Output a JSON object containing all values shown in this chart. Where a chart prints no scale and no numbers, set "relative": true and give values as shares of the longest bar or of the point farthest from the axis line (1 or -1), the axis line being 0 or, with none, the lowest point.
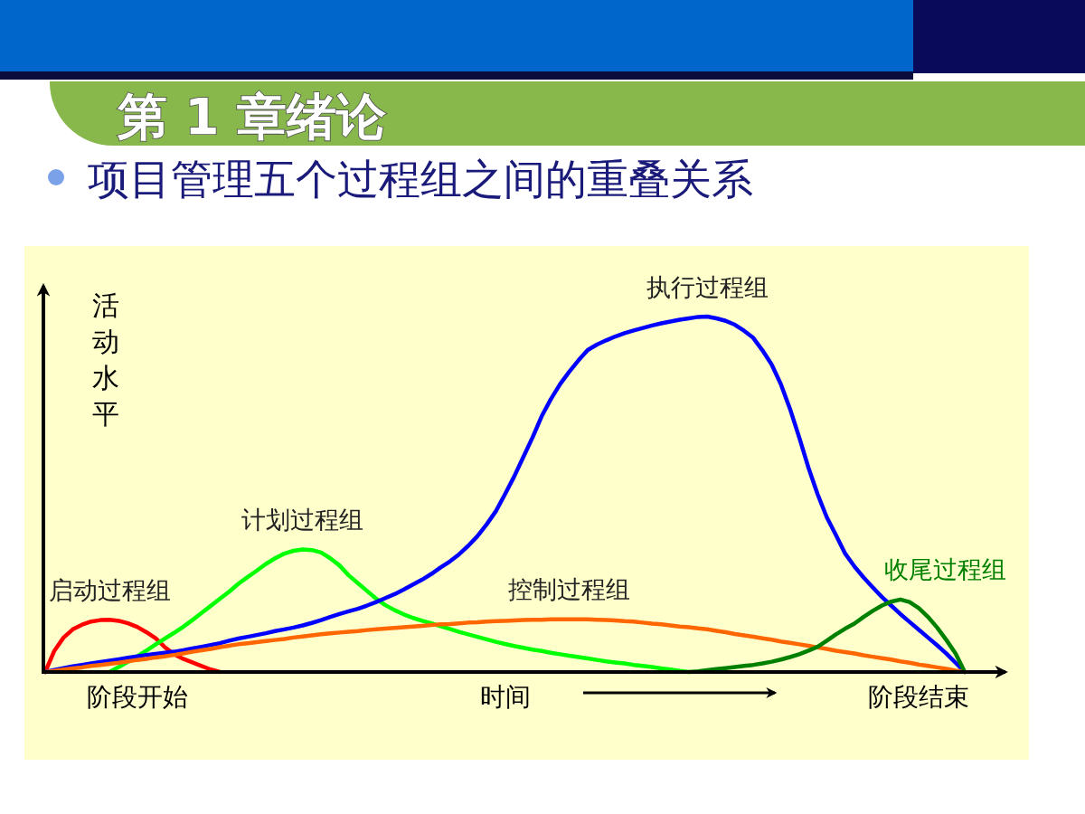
{
  "chart_data": {
    "type": "line",
    "title": "第 1 章绪论",
    "subtitle": "项目管理五个过程组之间的重叠关系",
    "xlabel": "时间",
    "ylabel": "活动水平",
    "relative": true,
    "categories": [
      null,
      null,
      null,
      null,
      null,
      null,
      null,
      null,
      null,
      null,
      "阶段开始",
      null,
      null,
      null,
      null,
      null,
      null,
      null,
      null,
      null,
      null,
      null,
      null,
      null,
      null,
      null,
      null,
      null,
      null,
      null,
      null,
      null,
      null,
      null,
      null,
      null,
      null,
      null,
      null,
      null,
      null,
      null,
      null,
      null,
      null,
      null,
      null,
      null,
      null,
      null,
      null,
      null,
      null,
      null,
      null,
      null,
      null,
      null,
      null,
      null,
      null,
      null,
      null,
      null,
      null,
      null,
      null,
      null,
      null,
      null,
      null,
      null,
      null,
      null,
      null,
      null,
      null,
      null,
      null,
      null,
      null,
      null,
      null,
      null,
      null,
      null,
      null,
      null,
      null,
      null,
      null,
      null,
      null,
      null,
      null,
      "阶段结束",
      null,
      null,
      null,
      null,
      null
    ],
    "series": [
      {
        "name": "启动过程组",
        "color": "#ff0000",
        "values": [
          0,
          0.06,
          0.097,
          0.12,
          0.133,
          0.142,
          0.146,
          0.147,
          0.144,
          0.137,
          0.127,
          0.112,
          0.095,
          0.07,
          0.05,
          0.037,
          0.027,
          0.017,
          0.007,
          0,
          null,
          null,
          null,
          null,
          null,
          null,
          null,
          null,
          null,
          null,
          null,
          null,
          null,
          null,
          null,
          null,
          null,
          null,
          null,
          null,
          null,
          null,
          null,
          null,
          null,
          null,
          null,
          null,
          null,
          null,
          null,
          null,
          null,
          null,
          null,
          null,
          null,
          null,
          null,
          null,
          null,
          null,
          null,
          null,
          null,
          null,
          null,
          null,
          null,
          null,
          null,
          null,
          null,
          null,
          null,
          null,
          null,
          null,
          null,
          null,
          null,
          null,
          null,
          null,
          null,
          null,
          null,
          null,
          null,
          null,
          null,
          null,
          null,
          null,
          null,
          null,
          null,
          null,
          null,
          null,
          null
        ]
      },
      {
        "name": "计划过程组",
        "color": "#00ff00",
        "values": [
          null,
          null,
          null,
          null,
          null,
          null,
          null,
          0,
          0.014,
          0.029,
          0.044,
          0.06,
          0.077,
          0.094,
          0.11,
          0.127,
          0.146,
          0.166,
          0.186,
          0.206,
          0.226,
          0.248,
          0.267,
          0.285,
          0.304,
          0.32,
          0.333,
          0.341,
          0.345,
          0.343,
          0.336,
          0.32,
          0.3,
          0.272,
          0.25,
          0.228,
          0.206,
          0.188,
          0.174,
          0.162,
          0.152,
          0.144,
          0.137,
          0.129,
          0.121,
          0.113,
          0.106,
          0.099,
          0.092,
          0.085,
          0.079,
          0.073,
          0.068,
          0.063,
          0.059,
          0.054,
          0.05,
          0.046,
          0.042,
          0.038,
          0.034,
          0.03,
          0.027,
          0.024,
          0.02,
          0.017,
          0.014,
          0.01,
          0.007,
          0.003,
          0,
          null,
          null,
          null,
          null,
          null,
          null,
          null,
          null,
          null,
          null,
          null,
          null,
          null,
          null,
          null,
          null,
          null,
          null,
          null,
          null,
          null,
          null,
          null,
          null,
          null,
          null,
          null,
          null,
          null,
          null
        ]
      },
      {
        "name": "执行过程组",
        "color": "#0000ff",
        "values": [
          0,
          0.006,
          0.011,
          0.016,
          0.02,
          0.024,
          0.028,
          0.032,
          0.036,
          0.04,
          0.044,
          0.048,
          0.051,
          0.054,
          0.057,
          0.061,
          0.066,
          0.071,
          0.076,
          0.081,
          0.088,
          0.094,
          0.099,
          0.104,
          0.109,
          0.115,
          0.12,
          0.125,
          0.131,
          0.138,
          0.146,
          0.155,
          0.163,
          0.171,
          0.178,
          0.187,
          0.197,
          0.208,
          0.219,
          0.232,
          0.246,
          0.26,
          0.276,
          0.294,
          0.311,
          0.331,
          0.355,
          0.382,
          0.415,
          0.452,
          0.5,
          0.55,
          0.605,
          0.66,
          0.72,
          0.768,
          0.81,
          0.845,
          0.877,
          0.906,
          0.921,
          0.933,
          0.944,
          0.953,
          0.961,
          0.968,
          0.975,
          0.981,
          0.986,
          0.991,
          0.995,
          0.999,
          1,
          0.995,
          0.988,
          0.977,
          0.96,
          0.94,
          0.905,
          0.865,
          0.81,
          0.74,
          0.66,
          0.575,
          0.5,
          0.435,
          0.385,
          0.333,
          0.297,
          0.266,
          0.238,
          0.211,
          0.187,
          0.163,
          0.141,
          0.119,
          0.097,
          0.075,
          0.052,
          0.026,
          0
        ]
      },
      {
        "name": "控制过程组",
        "color": "#ff6600",
        "values": [
          0,
          0.003,
          0.007,
          0.01,
          0.013,
          0.017,
          0.02,
          0.023,
          0.026,
          0.03,
          0.034,
          0.037,
          0.041,
          0.044,
          0.048,
          0.052,
          0.057,
          0.061,
          0.065,
          0.07,
          0.074,
          0.078,
          0.081,
          0.084,
          0.087,
          0.09,
          0.093,
          0.097,
          0.1,
          0.103,
          0.106,
          0.109,
          0.111,
          0.113,
          0.115,
          0.118,
          0.12,
          0.122,
          0.124,
          0.126,
          0.128,
          0.13,
          0.132,
          0.134,
          0.135,
          0.137,
          0.139,
          0.14,
          0.142,
          0.143,
          0.144,
          0.145,
          0.146,
          0.147,
          0.147,
          0.148,
          0.148,
          0.148,
          0.148,
          0.148,
          0.147,
          0.146,
          0.145,
          0.143,
          0.142,
          0.139,
          0.136,
          0.134,
          0.131,
          0.128,
          0.126,
          0.123,
          0.12,
          0.116,
          0.112,
          0.107,
          0.103,
          0.099,
          0.095,
          0.091,
          0.086,
          0.082,
          0.078,
          0.074,
          0.069,
          0.065,
          0.06,
          0.056,
          0.052,
          0.047,
          0.043,
          0.039,
          0.035,
          0.03,
          0.026,
          0.021,
          0.017,
          0.013,
          0.009,
          0.004,
          0
        ]
      },
      {
        "name": "收尾过程组",
        "color": "#008000",
        "values": [
          null,
          null,
          null,
          null,
          null,
          null,
          null,
          null,
          null,
          null,
          null,
          null,
          null,
          null,
          null,
          null,
          null,
          null,
          null,
          null,
          null,
          null,
          null,
          null,
          null,
          null,
          null,
          null,
          null,
          null,
          null,
          null,
          null,
          null,
          null,
          null,
          null,
          null,
          null,
          null,
          null,
          null,
          null,
          null,
          null,
          null,
          null,
          null,
          null,
          null,
          null,
          null,
          null,
          null,
          null,
          null,
          null,
          null,
          null,
          null,
          null,
          null,
          null,
          null,
          null,
          null,
          null,
          null,
          null,
          null,
          0,
          0.002,
          0.005,
          0.008,
          0.011,
          0.014,
          0.017,
          0.02,
          0.024,
          0.029,
          0.035,
          0.042,
          0.05,
          0.06,
          0.071,
          0.088,
          0.106,
          0.122,
          0.136,
          0.155,
          0.172,
          0.187,
          0.198,
          0.204,
          0.197,
          0.18,
          0.155,
          0.125,
          0.09,
          0.052,
          0
        ]
      }
    ]
  }
}
